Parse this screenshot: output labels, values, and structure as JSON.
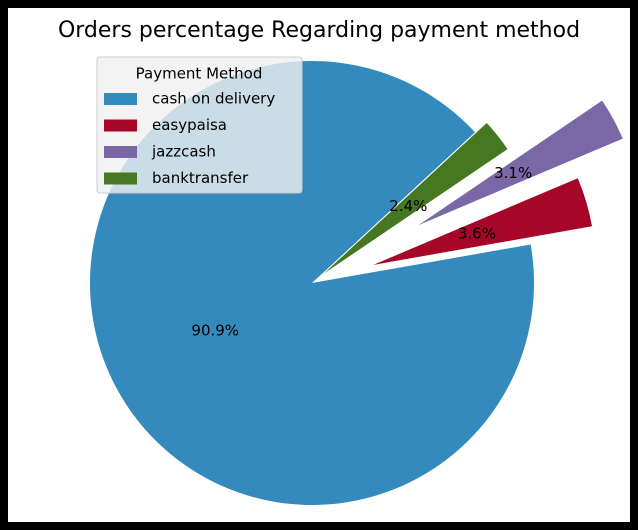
{
  "chart_data": {
    "type": "pie",
    "title": "Orders percentage Regarding payment method",
    "categories": [
      "cash on delivery",
      "easypaisa",
      "jazzcash",
      "banktransfer"
    ],
    "values": [
      90.9,
      3.6,
      3.1,
      2.4
    ],
    "value_labels": [
      "90.9%",
      "3.6%",
      "3.1%",
      "2.4%"
    ],
    "colors": [
      "#348abd",
      "#a60628",
      "#7a68a6",
      "#467821"
    ],
    "legend_title": "Payment Method",
    "legend": "upper left"
  }
}
